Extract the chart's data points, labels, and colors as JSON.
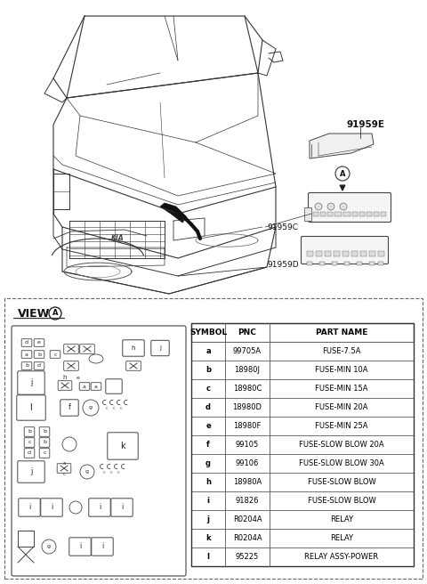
{
  "background_color": "#ffffff",
  "table_headers": [
    "SYMBOL",
    "PNC",
    "PART NAME"
  ],
  "table_rows": [
    [
      "a",
      "99705A",
      "FUSE-7.5A"
    ],
    [
      "b",
      "18980J",
      "FUSE-MIN 10A"
    ],
    [
      "c",
      "18980C",
      "FUSE-MIN 15A"
    ],
    [
      "d",
      "18980D",
      "FUSE-MIN 20A"
    ],
    [
      "e",
      "18980F",
      "FUSE-MIN 25A"
    ],
    [
      "f",
      "99105",
      "FUSE-SLOW BLOW 20A"
    ],
    [
      "g",
      "99106",
      "FUSE-SLOW BLOW 30A"
    ],
    [
      "h",
      "18980A",
      "FUSE-SLOW BLOW"
    ],
    [
      "i",
      "91826",
      "FUSE-SLOW BLOW"
    ],
    [
      "j",
      "R0204A",
      "RELAY"
    ],
    [
      "k",
      "R0204A",
      "RELAY"
    ],
    [
      "l",
      "95225",
      "RELAY ASSY-POWER"
    ]
  ],
  "label_91959E": "91959E",
  "label_91959C": "91959C",
  "label_91959D": "91959D",
  "label_view": "VIEW",
  "label_A": "A"
}
